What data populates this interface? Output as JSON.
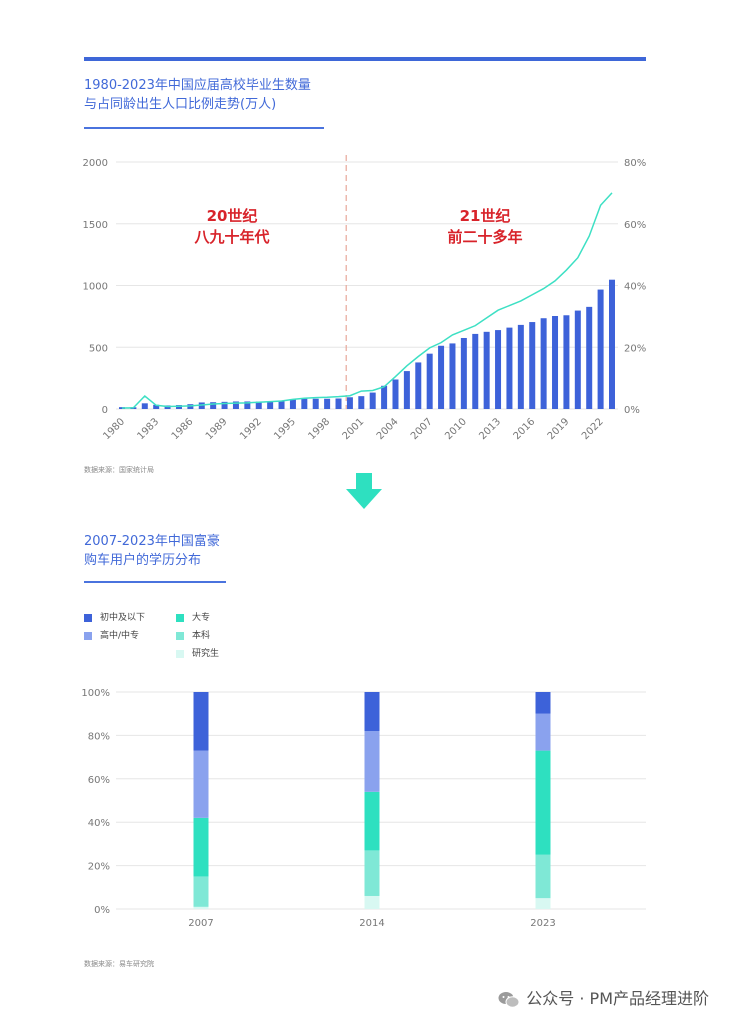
{
  "section1": {
    "title_line1": "1980-2023年中国应届高校毕业生数量",
    "title_line2": "与占同龄出生人口比例走势(万人)",
    "source": "数据来源：国家统计局"
  },
  "section2": {
    "title_line1": "2007-2023年中国富豪",
    "title_line2": "购车用户的学历分布",
    "source": "数据来源：易车研究院"
  },
  "watermark": "公众号 · PM产品经理进阶",
  "colors": {
    "bar_blue": "#3d62d9",
    "line_cyan": "#3de0c4",
    "divider": "#e8a89a",
    "era_label": "#d8232a",
    "title_blue": "#4169d8"
  },
  "chart_data": [
    {
      "type": "bar",
      "secondary_type": "line",
      "annotations": [
        {
          "line1": "20世纪",
          "line2": "八九十年代"
        },
        {
          "line1": "21世纪",
          "line2": "前二十多年"
        }
      ],
      "x": [
        1980,
        1981,
        1982,
        1983,
        1984,
        1985,
        1986,
        1987,
        1988,
        1989,
        1990,
        1991,
        1992,
        1993,
        1994,
        1995,
        1996,
        1997,
        1998,
        1999,
        2000,
        2001,
        2002,
        2003,
        2004,
        2005,
        2006,
        2007,
        2008,
        2009,
        2010,
        2011,
        2012,
        2013,
        2014,
        2015,
        2016,
        2017,
        2018,
        2019,
        2020,
        2021,
        2022,
        2023
      ],
      "x_ticks": [
        "1980",
        "1983",
        "1986",
        "1989",
        "1992",
        "1995",
        "1998",
        "2001",
        "2004",
        "2007",
        "2010",
        "2013",
        "2016",
        "2019",
        "2022"
      ],
      "series": [
        {
          "axis": "left",
          "values": [
            15,
            14,
            46,
            34,
            29,
            32,
            39,
            53,
            55,
            58,
            61,
            61,
            60,
            57,
            64,
            81,
            84,
            83,
            83,
            85,
            95,
            104,
            133,
            188,
            239,
            307,
            377,
            448,
            512,
            531,
            575,
            608,
            625,
            639,
            659,
            681,
            704,
            735,
            753,
            759,
            797,
            827,
            967,
            1047
          ]
        },
        {
          "axis": "right",
          "values": [
            0.3,
            0.4,
            4.2,
            1.2,
            0.8,
            0.9,
            1.0,
            1.3,
            1.6,
            1.8,
            1.9,
            2.0,
            2.2,
            2.4,
            2.6,
            3.1,
            3.5,
            3.7,
            3.8,
            4.0,
            4.3,
            5.8,
            6.0,
            7.2,
            10.5,
            14.0,
            17.0,
            19.8,
            21.5,
            24.0,
            25.5,
            27.0,
            29.5,
            32.0,
            33.5,
            35.0,
            37.0,
            39.0,
            41.5,
            45.0,
            49.0,
            56.0,
            66.0,
            70.0
          ]
        }
      ],
      "ylim_left": [
        0,
        2000
      ],
      "yticks_left": [
        "0",
        "500",
        "1000",
        "1500",
        "2000"
      ],
      "ylim_right": [
        0,
        80
      ],
      "yticks_right": [
        "0%",
        "20%",
        "40%",
        "60%",
        "80%"
      ]
    },
    {
      "type": "bar",
      "stacked": true,
      "categories": [
        "2007",
        "2014",
        "2023"
      ],
      "series": [
        {
          "name": "研究生",
          "color": "#d8f8f2",
          "values": [
            1,
            6,
            5
          ]
        },
        {
          "name": "本科",
          "color": "#7fe8d6",
          "values": [
            14,
            21,
            20
          ]
        },
        {
          "name": "大专",
          "color": "#2ee0c0",
          "values": [
            27,
            27,
            48
          ]
        },
        {
          "name": "高中/中专",
          "color": "#8aa2ee",
          "values": [
            31,
            28,
            17
          ]
        },
        {
          "name": "初中及以下",
          "color": "#3d62d9",
          "values": [
            27,
            18,
            10
          ]
        }
      ],
      "legend_order": [
        "初中及以下",
        "高中/中专",
        "大专",
        "本科",
        "研究生"
      ],
      "ylim": [
        0,
        100
      ],
      "yticks": [
        "0%",
        "20%",
        "40%",
        "60%",
        "80%",
        "100%"
      ]
    }
  ]
}
